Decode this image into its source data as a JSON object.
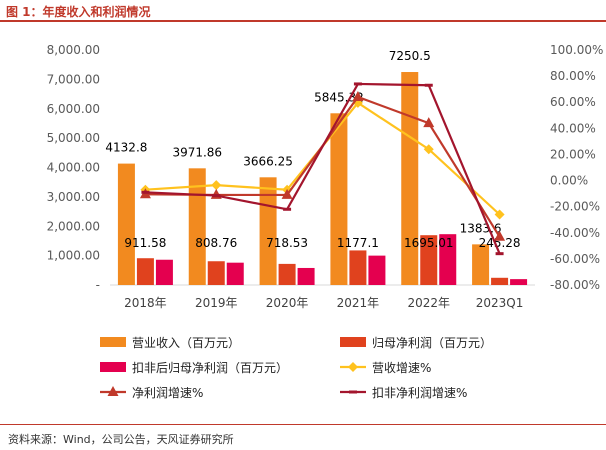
{
  "figure_title": "图 1：年度收入和利润情况",
  "source": "资料来源：Wind，公司公告，天风证券研究所",
  "colors": {
    "revenue": "#F28A1F",
    "net_profit": "#E0421E",
    "deducted_profit": "#E4004F",
    "revenue_growth": "#FFC21E",
    "net_profit_growth": "#C0392B",
    "deducted_growth": "#A3152D"
  },
  "chart_data": {
    "type": "bar",
    "title": "",
    "categories": [
      "2018年",
      "2019年",
      "2020年",
      "2021年",
      "2022年",
      "2023Q1"
    ],
    "left_axis": {
      "min": 0,
      "max": 8000,
      "step": 1000,
      "tick_labels": [
        "-",
        "1,000.00",
        "2,000.00",
        "3,000.00",
        "4,000.00",
        "5,000.00",
        "6,000.00",
        "7,000.00",
        "8,000.00"
      ]
    },
    "right_axis": {
      "min": -80,
      "max": 100,
      "step": 20,
      "tick_labels": [
        "-80.00%",
        "-60.00%",
        "-40.00%",
        "-20.00%",
        "0.00%",
        "20.00%",
        "40.00%",
        "60.00%",
        "80.00%",
        "100.00%"
      ]
    },
    "series": [
      {
        "name": "营业收入（百万元）",
        "kind": "bar",
        "axis": "left",
        "color_key": "revenue",
        "values": [
          4132.8,
          3971.86,
          3666.25,
          5845.32,
          7250.5,
          1383.6
        ],
        "labels": [
          "4132.8",
          "3971.86",
          "3666.25",
          "5845.32",
          "7250.5",
          "1383.6"
        ]
      },
      {
        "name": "归母净利润（百万元）",
        "kind": "bar",
        "axis": "left",
        "color_key": "net_profit",
        "values": [
          911.58,
          808.76,
          718.53,
          1177.1,
          1695.01,
          245.28
        ],
        "labels": [
          "911.58",
          "808.76",
          "718.53",
          "1177.1",
          "1695.01",
          "245.28"
        ]
      },
      {
        "name": "扣非后归母净利润（百万元）",
        "kind": "bar",
        "axis": "left",
        "color_key": "deducted_profit",
        "values": [
          860,
          760,
          580,
          1000,
          1730,
          200
        ]
      },
      {
        "name": "营收增速%",
        "kind": "line",
        "axis": "right",
        "marker": "diamond",
        "color_key": "revenue_growth",
        "values": [
          -7,
          -3.5,
          -7,
          59.5,
          24,
          -26
        ]
      },
      {
        "name": "净利润增速%",
        "kind": "line",
        "axis": "right",
        "marker": "triangle",
        "color_key": "net_profit_growth",
        "values": [
          -10.5,
          -11,
          -11,
          64,
          44,
          -43
        ]
      },
      {
        "name": "扣非净利润增速%",
        "kind": "line",
        "axis": "right",
        "marker": "dash",
        "color_key": "deducted_growth",
        "values": [
          -9,
          -11.5,
          -22,
          74,
          73,
          -56
        ]
      }
    ],
    "legend": [
      {
        "label": "营业收入（百万元）",
        "icon": "rect",
        "color_key": "revenue"
      },
      {
        "label": "归母净利润（百万元）",
        "icon": "rect",
        "color_key": "net_profit"
      },
      {
        "label": "扣非后归母净利润（百万元）",
        "icon": "rect",
        "color_key": "deducted_profit"
      },
      {
        "label": "营收增速%",
        "icon": "diamond",
        "color_key": "revenue_growth"
      },
      {
        "label": "净利润增速%",
        "icon": "triangle",
        "color_key": "net_profit_growth"
      },
      {
        "label": "扣非净利润增速%",
        "icon": "dash",
        "color_key": "deducted_growth"
      }
    ],
    "legend_position": "bottom",
    "grid": false
  }
}
